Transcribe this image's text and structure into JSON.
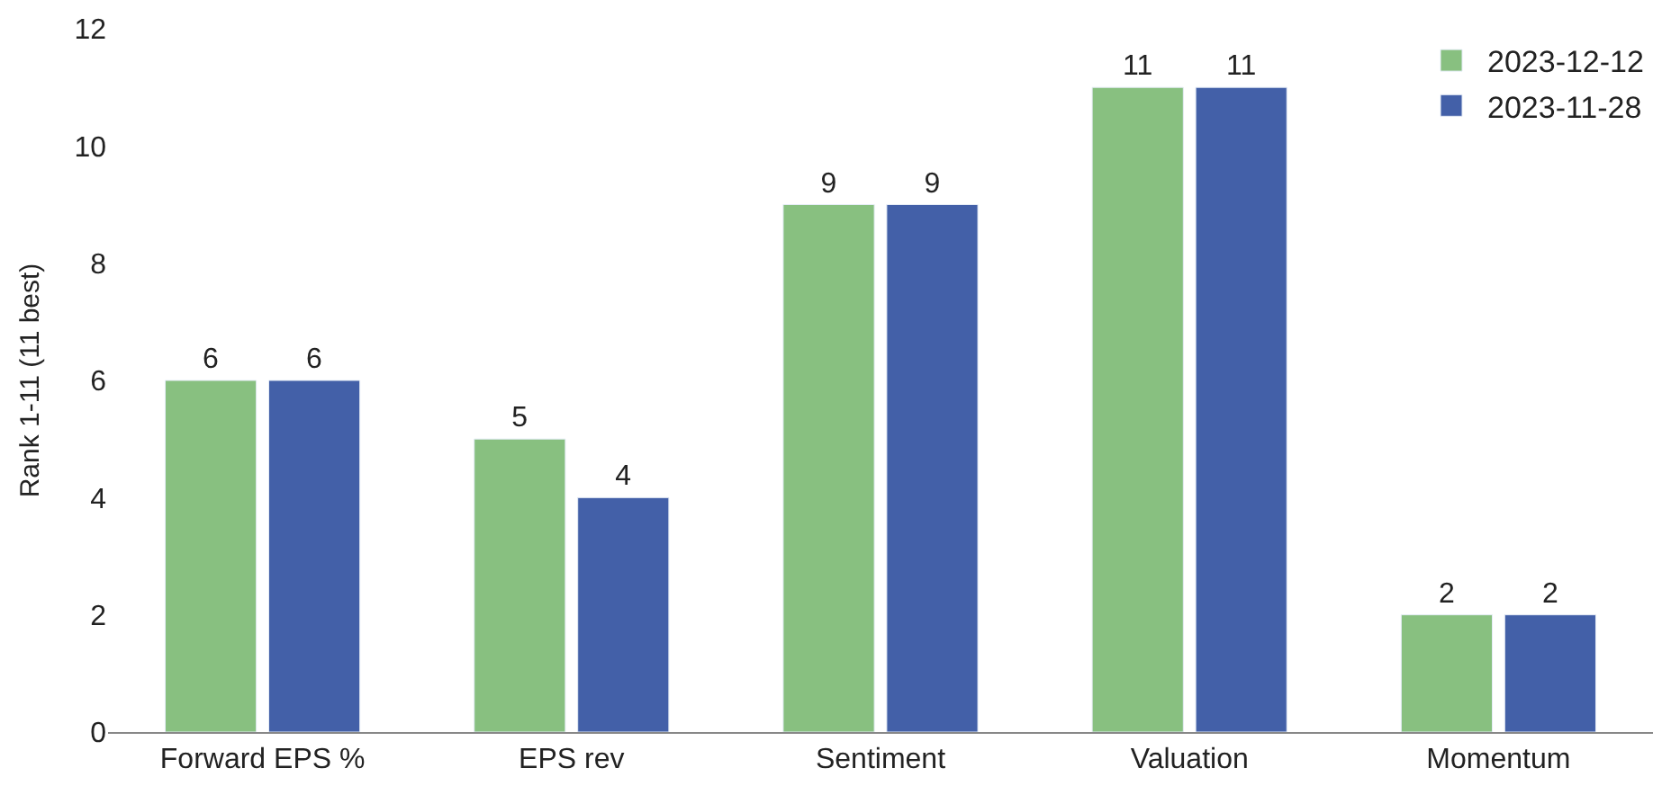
{
  "chart_data": {
    "type": "bar",
    "ylabel": "Rank 1-11 (11 best)",
    "categories": [
      "Forward EPS %",
      "EPS rev",
      "Sentiment",
      "Valuation",
      "Momentum"
    ],
    "series": [
      {
        "name": "2023-12-12",
        "color": "#88c080",
        "values": [
          6,
          5,
          9,
          11,
          2
        ]
      },
      {
        "name": "2023-11-28",
        "color": "#4360a8",
        "values": [
          6,
          4,
          9,
          11,
          2
        ]
      }
    ],
    "ylim": [
      0,
      12
    ],
    "yticks": [
      0,
      2,
      4,
      6,
      8,
      10,
      12
    ],
    "legend": "top right",
    "data_labels": true
  }
}
